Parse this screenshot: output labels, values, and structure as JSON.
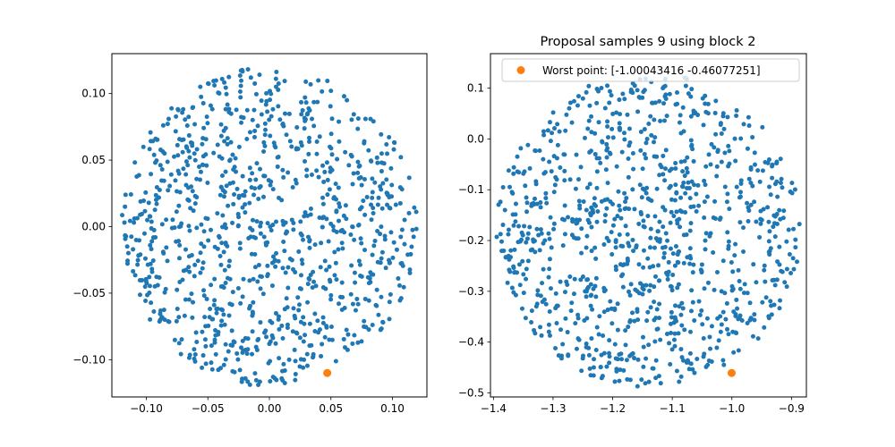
{
  "colors": {
    "samples": "#1f77b4",
    "worst": "#ff7f0e",
    "axes": "#000000"
  },
  "chart_data": [
    {
      "type": "scatter",
      "title": "",
      "xlim": [
        -0.128,
        0.128
      ],
      "ylim": [
        -0.128,
        0.13
      ],
      "xticks": [
        -0.1,
        -0.05,
        0.0,
        0.05,
        0.1
      ],
      "xtick_labels": [
        "−0.10",
        "−0.05",
        "0.00",
        "0.05",
        "0.10"
      ],
      "yticks": [
        -0.1,
        -0.05,
        0.0,
        0.05,
        0.1
      ],
      "ytick_labels": [
        "−0.10",
        "−0.05",
        "0.00",
        "0.05",
        "0.10"
      ],
      "samples": {
        "count": 1000,
        "center": [
          0.0,
          0.0
        ],
        "radii": [
          0.12,
          0.12
        ],
        "approximate": true,
        "seed": 11
      },
      "worst_point": [
        0.047,
        -0.11
      ],
      "legend": null
    },
    {
      "type": "scatter",
      "title": "Proposal samples 9 using block 2",
      "xlim": [
        -1.405,
        -0.875
      ],
      "ylim": [
        -0.508,
        0.168
      ],
      "xticks": [
        -1.4,
        -1.3,
        -1.2,
        -1.1,
        -1.0,
        -0.9
      ],
      "xtick_labels": [
        "−1.4",
        "−1.3",
        "−1.2",
        "−1.1",
        "−1.0",
        "−0.9"
      ],
      "yticks": [
        -0.5,
        -0.4,
        -0.3,
        -0.2,
        -0.1,
        0.0,
        0.1
      ],
      "ytick_labels": [
        "−0.5",
        "−0.4",
        "−0.3",
        "−0.2",
        "−0.1",
        "0.0",
        "0.1"
      ],
      "samples": {
        "count": 1000,
        "center": [
          -1.14,
          -0.18
        ],
        "radii": [
          0.255,
          0.31
        ],
        "approximate": true,
        "seed": 23
      },
      "worst_point": [
        -1.0004,
        -0.4608
      ],
      "legend": {
        "label": "Worst point: [-1.00043416 -0.46077251]",
        "position": "top"
      }
    }
  ]
}
